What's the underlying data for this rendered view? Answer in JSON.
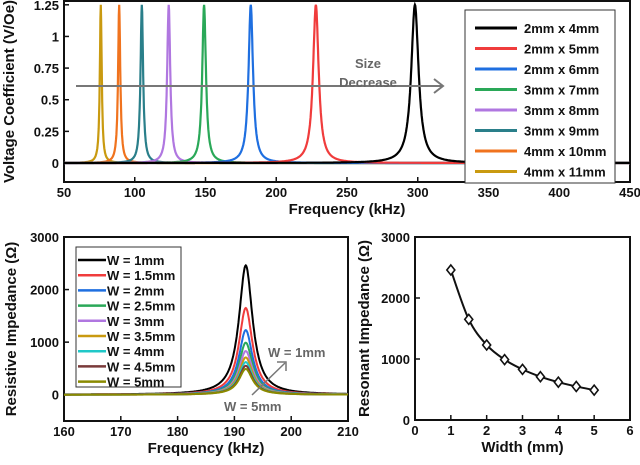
{
  "chart_data": [
    {
      "type": "line",
      "xlabel": "Frequency (kHz)",
      "ylabel": "Voltage Coefficient (V/Oe)",
      "xlim": [
        50,
        450
      ],
      "ylim": [
        -0.15,
        1.28
      ],
      "xticks": [
        "50",
        "100",
        "150",
        "200",
        "250",
        "300",
        "350",
        "400",
        "450"
      ],
      "yticks": [
        "0",
        "0.25",
        "0.5",
        "0.75",
        "1",
        "1.25"
      ],
      "legend_position": "top-right",
      "annotation": [
        "Size",
        "Decrease"
      ],
      "series": [
        {
          "name": "2mm x 4mm",
          "color": "#000000",
          "peak_freq": 298,
          "peak_value": 1.25
        },
        {
          "name": "2mm x 5mm",
          "color": "#f03c3c",
          "peak_freq": 228,
          "peak_value": 1.25
        },
        {
          "name": "2mm x 6mm",
          "color": "#1f6fe0",
          "peak_freq": 182,
          "peak_value": 1.25
        },
        {
          "name": "3mm x 7mm",
          "color": "#2aa858",
          "peak_freq": 149,
          "peak_value": 1.25
        },
        {
          "name": "3mm x 8mm",
          "color": "#b077e0",
          "peak_freq": 124,
          "peak_value": 1.25
        },
        {
          "name": "3mm x 9mm",
          "color": "#2a7f8a",
          "peak_freq": 105,
          "peak_value": 1.25
        },
        {
          "name": "4mm x 10mm",
          "color": "#f0731e",
          "peak_freq": 89,
          "peak_value": 1.25
        },
        {
          "name": "4mm x 11mm",
          "color": "#c99a10",
          "peak_freq": 76,
          "peak_value": 1.25
        }
      ]
    },
    {
      "type": "line",
      "xlabel": "Frequency (kHz)",
      "ylabel": "Resistive Impedance (Ω)",
      "xlim": [
        160,
        210
      ],
      "ylim": [
        -500,
        3000
      ],
      "xticks": [
        "160",
        "170",
        "180",
        "190",
        "200",
        "210"
      ],
      "yticks": [
        "0",
        "1000",
        "2000",
        "3000"
      ],
      "legend_position": "top-left",
      "annotations": [
        "W = 1mm",
        "W = 5mm"
      ],
      "series": [
        {
          "name": "W = 1mm",
          "color": "#000000",
          "peak_freq": 192,
          "peak_value": 2460
        },
        {
          "name": "W = 1.5mm",
          "color": "#f03c3c",
          "peak_freq": 192,
          "peak_value": 1650
        },
        {
          "name": "W = 2mm",
          "color": "#1f6fe0",
          "peak_freq": 192,
          "peak_value": 1230
        },
        {
          "name": "W = 2.5mm",
          "color": "#2aa858",
          "peak_freq": 192,
          "peak_value": 990
        },
        {
          "name": "W = 3mm",
          "color": "#b077e0",
          "peak_freq": 192,
          "peak_value": 830
        },
        {
          "name": "W = 3.5mm",
          "color": "#c99a10",
          "peak_freq": 192,
          "peak_value": 710
        },
        {
          "name": "W = 4mm",
          "color": "#20c8c8",
          "peak_freq": 192,
          "peak_value": 620
        },
        {
          "name": "W = 4.5mm",
          "color": "#7a3a3a",
          "peak_freq": 192,
          "peak_value": 550
        },
        {
          "name": "W = 5mm",
          "color": "#8a8a00",
          "peak_freq": 192,
          "peak_value": 490
        }
      ]
    },
    {
      "type": "line",
      "xlabel": "Width (mm)",
      "ylabel": "Resonant Impedance (Ω)",
      "xlim": [
        0,
        6
      ],
      "ylim": [
        0,
        3000
      ],
      "xticks": [
        "0",
        "1",
        "2",
        "3",
        "4",
        "5",
        "6"
      ],
      "yticks": [
        "0",
        "1000",
        "2000",
        "3000"
      ],
      "x": [
        1,
        1.5,
        2,
        2.5,
        3,
        3.5,
        4,
        4.5,
        5
      ],
      "y": [
        2460,
        1650,
        1230,
        990,
        830,
        710,
        620,
        550,
        490
      ]
    }
  ]
}
